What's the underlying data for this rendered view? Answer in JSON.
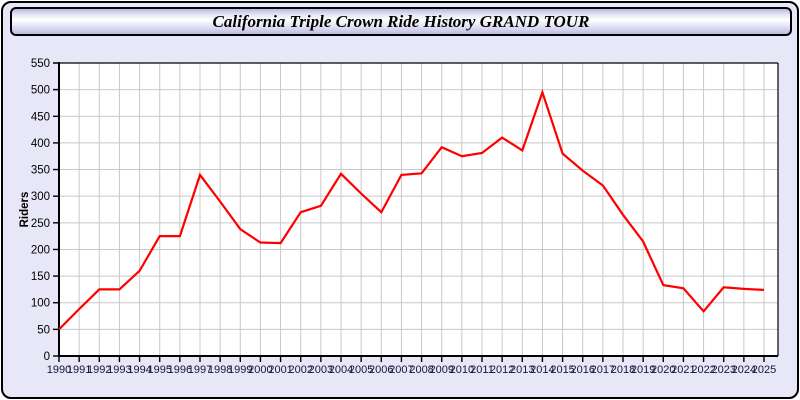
{
  "window": {
    "title_bar": "California Triple Crown Ride History GRAND TOUR"
  },
  "chart_data": {
    "type": "line",
    "title": "California Triple Crown Ride History GRAND TOUR",
    "xlabel": "",
    "ylabel": "Riders",
    "x": [
      1990,
      1991,
      1992,
      1993,
      1994,
      1995,
      1996,
      1997,
      1998,
      1999,
      2000,
      2001,
      2002,
      2003,
      2004,
      2005,
      2006,
      2007,
      2008,
      2009,
      2010,
      2011,
      2012,
      2013,
      2014,
      2015,
      2016,
      2017,
      2018,
      2019,
      2020,
      2021,
      2022,
      2023,
      2024,
      2025
    ],
    "series": [
      {
        "name": "Riders",
        "values": [
          50,
          88,
          125,
          125,
          160,
          225,
          225,
          340,
          290,
          238,
          213,
          212,
          270,
          282,
          342,
          305,
          270,
          340,
          343,
          392,
          375,
          381,
          410,
          386,
          495,
          380,
          348,
          320,
          265,
          215,
          133,
          127,
          84,
          129,
          126,
          124
        ]
      }
    ],
    "ylim": [
      0,
      550
    ],
    "ytick_step": 50,
    "grid": true,
    "legend_position": "none"
  },
  "colors": {
    "series_line": "#ff0000",
    "window_background": "#e7e7f8",
    "plot_background": "#ffffff",
    "gridline": "#c9c9c9",
    "axis": "#000000",
    "y_tick_label": "#000000",
    "x_tick_label": "#16163a",
    "border": "#000000"
  }
}
